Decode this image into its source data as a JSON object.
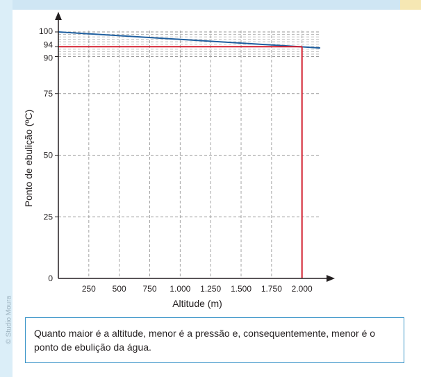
{
  "credit": "© Studio Moura",
  "caption": "Quanto maior é a altitude, menor é a pressão e, consequentemente, menor é o ponto de ebulição da água.",
  "colors": {
    "series": "#1f5f9f",
    "highlight": "#d32030",
    "grid": "#9a9a9a",
    "caption_border": "#3a94c8"
  },
  "chart_data": {
    "type": "line",
    "xlabel": "Altitude (m)",
    "ylabel": "Ponto de ebulição (ºC)",
    "xlim": [
      0,
      2150
    ],
    "ylim": [
      0,
      106
    ],
    "x_ticks": [
      250,
      500,
      750,
      1000,
      1250,
      1500,
      1750,
      2000
    ],
    "x_tick_labels": [
      "250",
      "500",
      "750",
      "1.000",
      "1.250",
      "1.500",
      "1.750",
      "2.000"
    ],
    "y_ticks": [
      0,
      25,
      50,
      75,
      90,
      94,
      100
    ],
    "y_tick_labels": [
      "0",
      "25",
      "50",
      "75",
      "90",
      "94",
      "100"
    ],
    "minor_y_gridlines": [
      91,
      92,
      93,
      95,
      96,
      97,
      98,
      99
    ],
    "grid": true,
    "series": [
      {
        "x": [
          0,
          2150
        ],
        "y": [
          100,
          93.5
        ]
      }
    ],
    "highlight": {
      "x": 2000,
      "y": 94
    }
  }
}
